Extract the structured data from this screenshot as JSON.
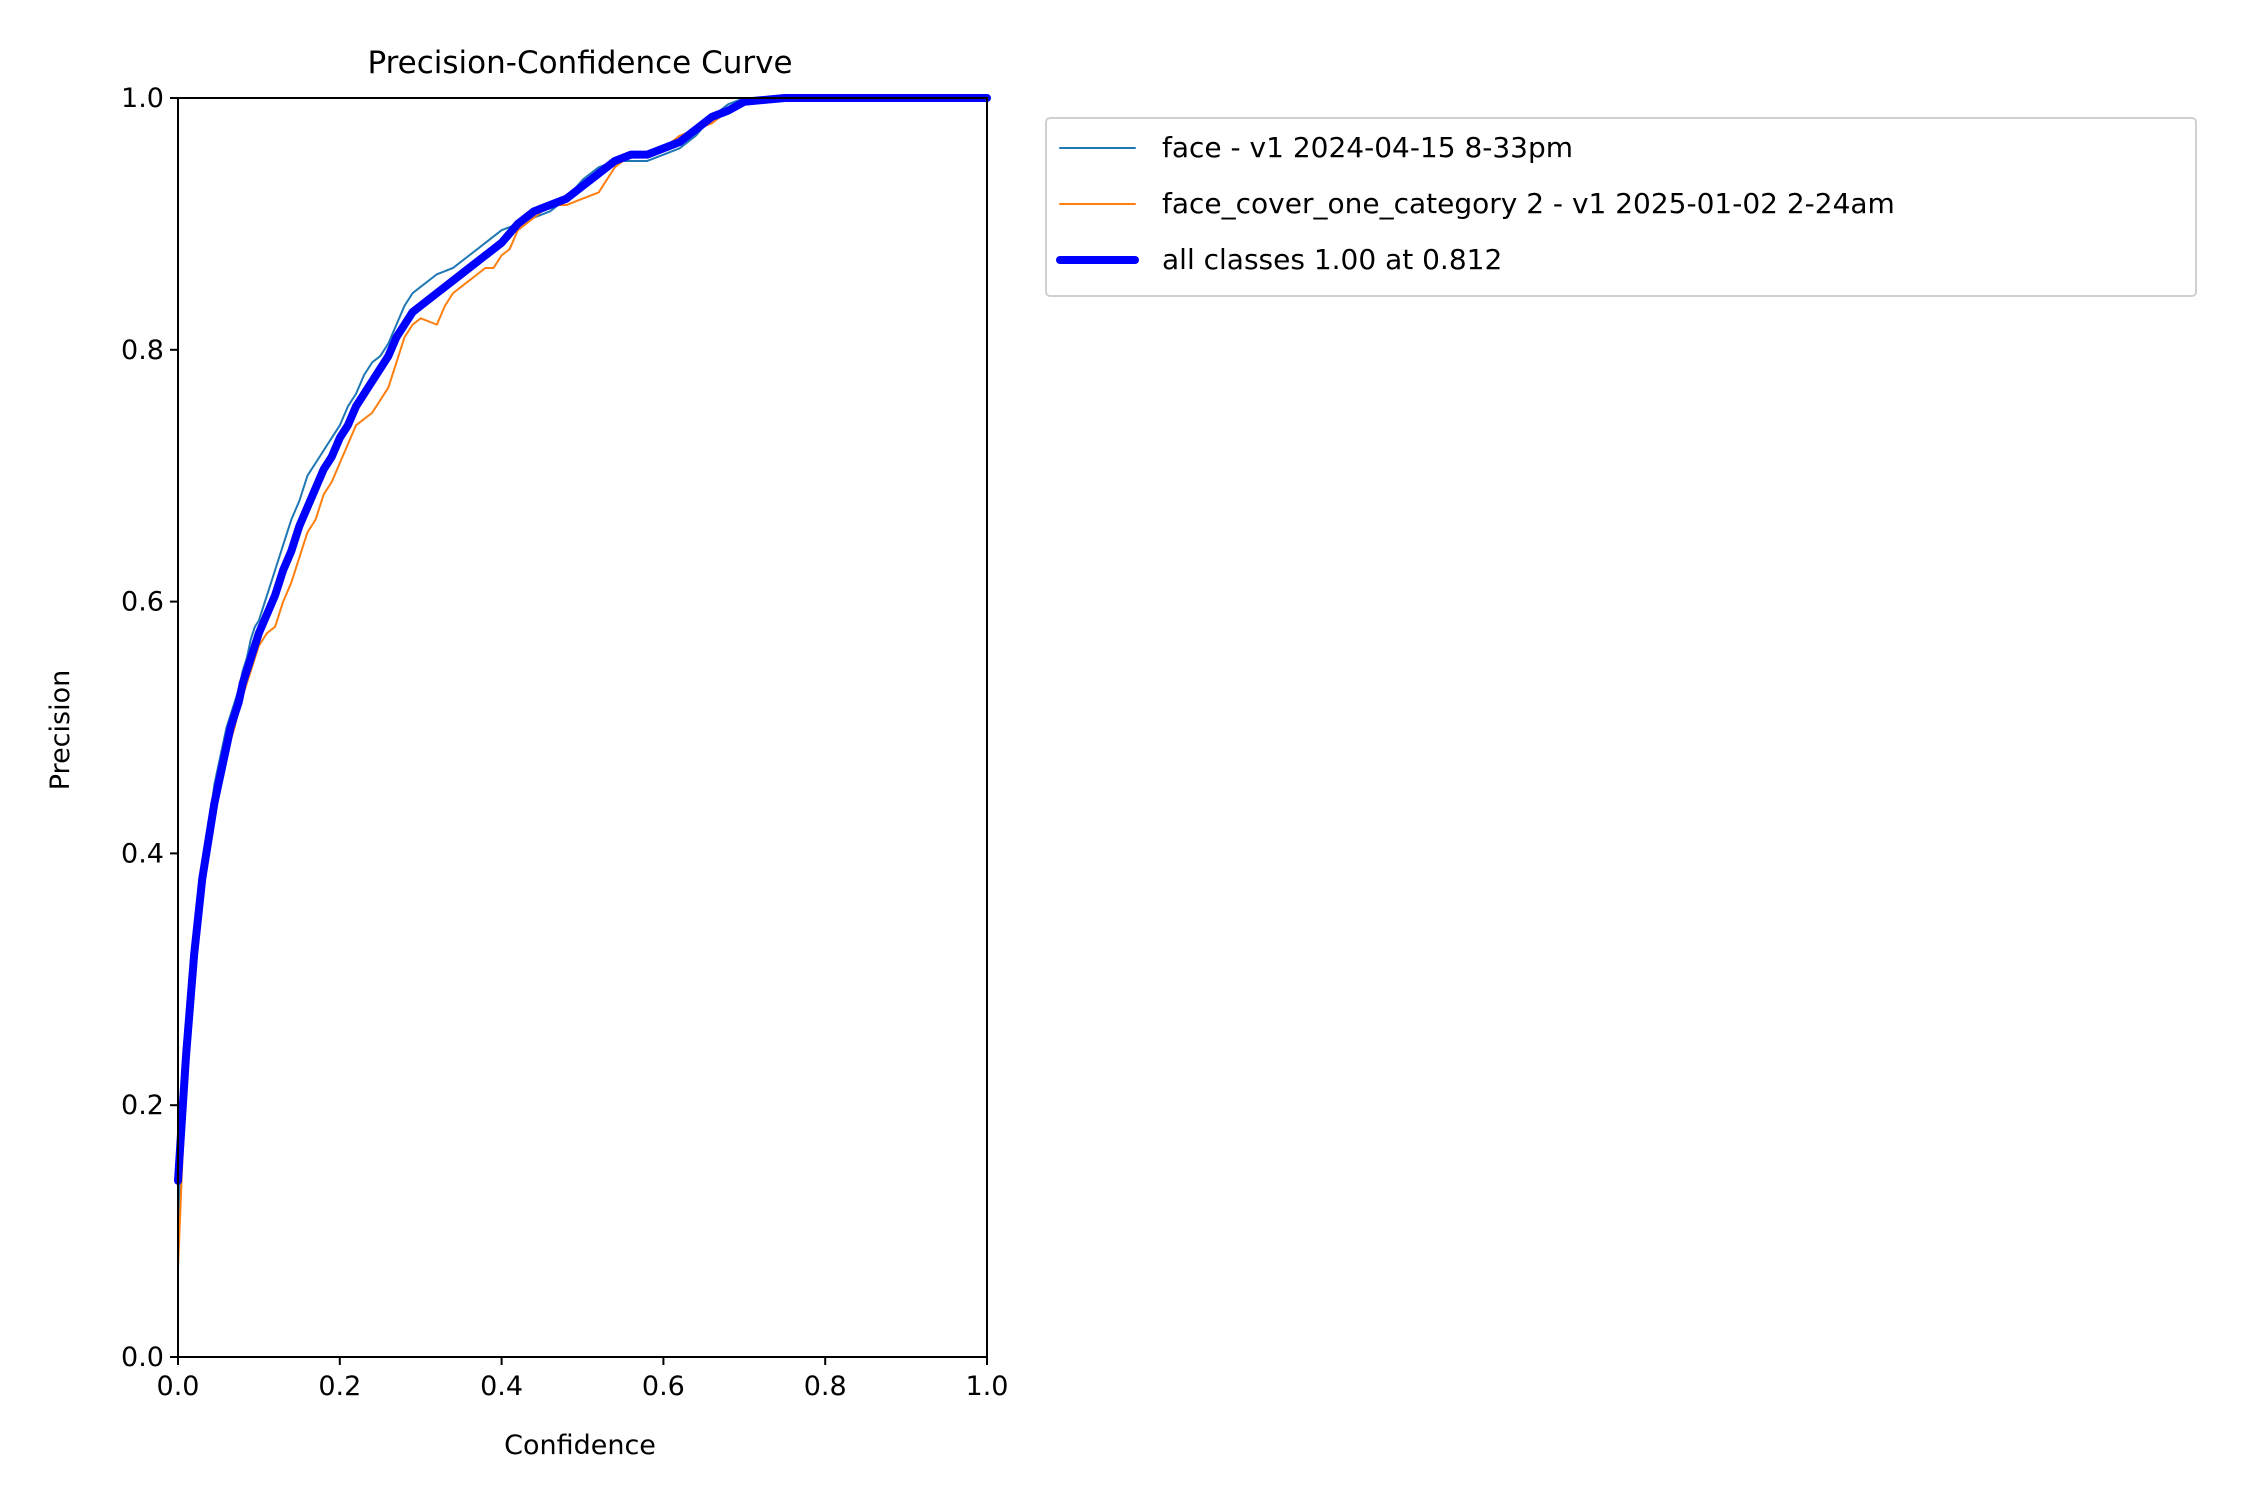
{
  "chart_data": {
    "type": "line",
    "title": "Precision-Confidence Curve",
    "xlabel": "Confidence",
    "ylabel": "Precision",
    "xlim": [
      0,
      1
    ],
    "ylim": [
      0,
      1
    ],
    "xticks": [
      "0.0",
      "0.2",
      "0.4",
      "0.6",
      "0.8",
      "1.0"
    ],
    "yticks": [
      "0.0",
      "0.2",
      "0.4",
      "0.6",
      "0.8",
      "1.0"
    ],
    "grid": false,
    "legend_position": "outside-upper-left",
    "series": [
      {
        "name": "face - v1 2024-04-15 8-33pm",
        "color": "#1f77b4",
        "line_weight": "thin",
        "points": [
          [
            0.0,
            0.1
          ],
          [
            0.005,
            0.18
          ],
          [
            0.01,
            0.24
          ],
          [
            0.015,
            0.29
          ],
          [
            0.02,
            0.33
          ],
          [
            0.025,
            0.36
          ],
          [
            0.03,
            0.39
          ],
          [
            0.035,
            0.41
          ],
          [
            0.04,
            0.43
          ],
          [
            0.045,
            0.455
          ],
          [
            0.05,
            0.47
          ],
          [
            0.055,
            0.485
          ],
          [
            0.06,
            0.5
          ],
          [
            0.065,
            0.51
          ],
          [
            0.07,
            0.52
          ],
          [
            0.075,
            0.53
          ],
          [
            0.08,
            0.545
          ],
          [
            0.085,
            0.555
          ],
          [
            0.09,
            0.57
          ],
          [
            0.095,
            0.58
          ],
          [
            0.1,
            0.585
          ],
          [
            0.11,
            0.605
          ],
          [
            0.12,
            0.625
          ],
          [
            0.13,
            0.645
          ],
          [
            0.14,
            0.665
          ],
          [
            0.15,
            0.68
          ],
          [
            0.16,
            0.7
          ],
          [
            0.17,
            0.71
          ],
          [
            0.18,
            0.72
          ],
          [
            0.19,
            0.73
          ],
          [
            0.2,
            0.74
          ],
          [
            0.21,
            0.755
          ],
          [
            0.22,
            0.765
          ],
          [
            0.23,
            0.78
          ],
          [
            0.24,
            0.79
          ],
          [
            0.25,
            0.795
          ],
          [
            0.26,
            0.805
          ],
          [
            0.27,
            0.82
          ],
          [
            0.28,
            0.835
          ],
          [
            0.29,
            0.845
          ],
          [
            0.3,
            0.85
          ],
          [
            0.32,
            0.86
          ],
          [
            0.34,
            0.865
          ],
          [
            0.36,
            0.875
          ],
          [
            0.38,
            0.885
          ],
          [
            0.4,
            0.895
          ],
          [
            0.42,
            0.9
          ],
          [
            0.44,
            0.905
          ],
          [
            0.46,
            0.91
          ],
          [
            0.48,
            0.92
          ],
          [
            0.5,
            0.935
          ],
          [
            0.52,
            0.945
          ],
          [
            0.54,
            0.95
          ],
          [
            0.56,
            0.95
          ],
          [
            0.58,
            0.95
          ],
          [
            0.6,
            0.955
          ],
          [
            0.62,
            0.96
          ],
          [
            0.64,
            0.97
          ],
          [
            0.66,
            0.985
          ],
          [
            0.68,
            0.995
          ],
          [
            0.7,
            1.0
          ],
          [
            0.75,
            1.0
          ],
          [
            0.8,
            1.0
          ],
          [
            0.85,
            1.0
          ],
          [
            0.9,
            1.0
          ],
          [
            0.95,
            1.0
          ],
          [
            1.0,
            1.0
          ]
        ]
      },
      {
        "name": "face_cover_one_category 2 - v1 2025-01-02 2-24am",
        "color": "#ff7f0e",
        "line_weight": "thin",
        "points": [
          [
            0.0,
            0.07
          ],
          [
            0.005,
            0.15
          ],
          [
            0.01,
            0.22
          ],
          [
            0.015,
            0.27
          ],
          [
            0.02,
            0.31
          ],
          [
            0.025,
            0.345
          ],
          [
            0.03,
            0.37
          ],
          [
            0.035,
            0.395
          ],
          [
            0.04,
            0.415
          ],
          [
            0.045,
            0.43
          ],
          [
            0.05,
            0.445
          ],
          [
            0.055,
            0.46
          ],
          [
            0.06,
            0.475
          ],
          [
            0.065,
            0.49
          ],
          [
            0.07,
            0.5
          ],
          [
            0.075,
            0.515
          ],
          [
            0.08,
            0.525
          ],
          [
            0.085,
            0.535
          ],
          [
            0.09,
            0.545
          ],
          [
            0.095,
            0.555
          ],
          [
            0.1,
            0.565
          ],
          [
            0.11,
            0.575
          ],
          [
            0.12,
            0.58
          ],
          [
            0.13,
            0.6
          ],
          [
            0.14,
            0.615
          ],
          [
            0.15,
            0.635
          ],
          [
            0.16,
            0.655
          ],
          [
            0.17,
            0.665
          ],
          [
            0.18,
            0.685
          ],
          [
            0.19,
            0.695
          ],
          [
            0.2,
            0.71
          ],
          [
            0.21,
            0.725
          ],
          [
            0.22,
            0.74
          ],
          [
            0.23,
            0.745
          ],
          [
            0.24,
            0.75
          ],
          [
            0.25,
            0.76
          ],
          [
            0.26,
            0.77
          ],
          [
            0.27,
            0.79
          ],
          [
            0.28,
            0.81
          ],
          [
            0.29,
            0.82
          ],
          [
            0.3,
            0.825
          ],
          [
            0.32,
            0.82
          ],
          [
            0.33,
            0.835
          ],
          [
            0.34,
            0.845
          ],
          [
            0.35,
            0.85
          ],
          [
            0.36,
            0.855
          ],
          [
            0.37,
            0.86
          ],
          [
            0.38,
            0.865
          ],
          [
            0.39,
            0.865
          ],
          [
            0.4,
            0.875
          ],
          [
            0.41,
            0.88
          ],
          [
            0.42,
            0.895
          ],
          [
            0.44,
            0.905
          ],
          [
            0.46,
            0.915
          ],
          [
            0.48,
            0.915
          ],
          [
            0.5,
            0.92
          ],
          [
            0.52,
            0.925
          ],
          [
            0.54,
            0.945
          ],
          [
            0.56,
            0.955
          ],
          [
            0.58,
            0.955
          ],
          [
            0.6,
            0.96
          ],
          [
            0.62,
            0.97
          ],
          [
            0.64,
            0.975
          ],
          [
            0.66,
            0.98
          ],
          [
            0.68,
            0.99
          ],
          [
            0.7,
            0.995
          ],
          [
            0.75,
            1.0
          ],
          [
            0.8,
            1.0
          ],
          [
            0.85,
            1.0
          ],
          [
            0.9,
            1.0
          ],
          [
            0.95,
            1.0
          ],
          [
            1.0,
            1.0
          ]
        ]
      },
      {
        "name": "all classes 1.00 at 0.812",
        "color": "#0000ff",
        "line_weight": "thick",
        "points": [
          [
            0.0,
            0.14
          ],
          [
            0.005,
            0.19
          ],
          [
            0.01,
            0.24
          ],
          [
            0.015,
            0.28
          ],
          [
            0.02,
            0.32
          ],
          [
            0.025,
            0.35
          ],
          [
            0.03,
            0.38
          ],
          [
            0.035,
            0.4
          ],
          [
            0.04,
            0.42
          ],
          [
            0.045,
            0.44
          ],
          [
            0.05,
            0.455
          ],
          [
            0.055,
            0.47
          ],
          [
            0.06,
            0.485
          ],
          [
            0.065,
            0.5
          ],
          [
            0.07,
            0.51
          ],
          [
            0.075,
            0.52
          ],
          [
            0.08,
            0.535
          ],
          [
            0.085,
            0.545
          ],
          [
            0.09,
            0.555
          ],
          [
            0.095,
            0.565
          ],
          [
            0.1,
            0.575
          ],
          [
            0.11,
            0.59
          ],
          [
            0.12,
            0.605
          ],
          [
            0.13,
            0.625
          ],
          [
            0.14,
            0.64
          ],
          [
            0.15,
            0.66
          ],
          [
            0.16,
            0.675
          ],
          [
            0.17,
            0.69
          ],
          [
            0.18,
            0.705
          ],
          [
            0.19,
            0.715
          ],
          [
            0.2,
            0.73
          ],
          [
            0.21,
            0.74
          ],
          [
            0.22,
            0.755
          ],
          [
            0.23,
            0.765
          ],
          [
            0.24,
            0.775
          ],
          [
            0.25,
            0.785
          ],
          [
            0.26,
            0.795
          ],
          [
            0.27,
            0.81
          ],
          [
            0.28,
            0.82
          ],
          [
            0.29,
            0.83
          ],
          [
            0.3,
            0.835
          ],
          [
            0.32,
            0.845
          ],
          [
            0.34,
            0.855
          ],
          [
            0.36,
            0.865
          ],
          [
            0.38,
            0.875
          ],
          [
            0.4,
            0.885
          ],
          [
            0.42,
            0.9
          ],
          [
            0.44,
            0.91
          ],
          [
            0.46,
            0.915
          ],
          [
            0.48,
            0.92
          ],
          [
            0.5,
            0.93
          ],
          [
            0.52,
            0.94
          ],
          [
            0.54,
            0.95
          ],
          [
            0.56,
            0.955
          ],
          [
            0.58,
            0.955
          ],
          [
            0.6,
            0.96
          ],
          [
            0.62,
            0.965
          ],
          [
            0.64,
            0.975
          ],
          [
            0.66,
            0.985
          ],
          [
            0.68,
            0.99
          ],
          [
            0.7,
            0.997
          ],
          [
            0.75,
            1.0
          ],
          [
            0.8,
            1.0
          ],
          [
            0.812,
            1.0
          ],
          [
            0.85,
            1.0
          ],
          [
            0.9,
            1.0
          ],
          [
            0.95,
            1.0
          ],
          [
            1.0,
            1.0
          ]
        ]
      }
    ]
  }
}
